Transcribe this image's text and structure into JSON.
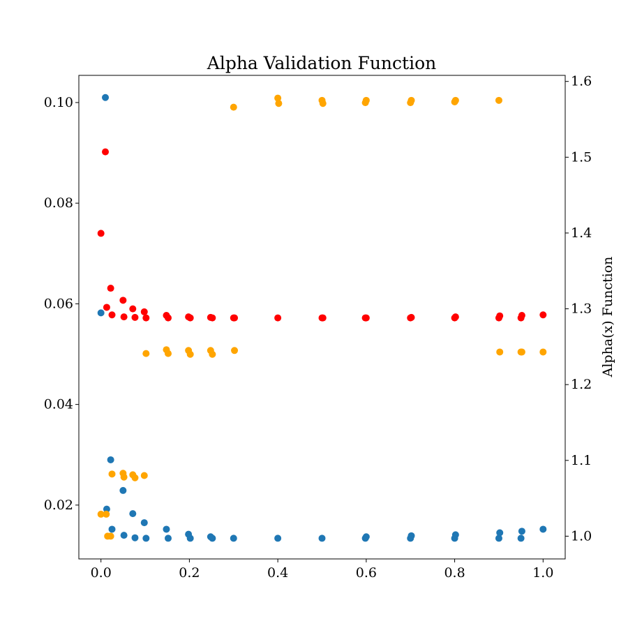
{
  "chart_data": {
    "type": "scatter",
    "title": "Alpha Validation Function",
    "xlabel": "",
    "ylabel_left": "",
    "ylabel_right": "Alpha(x) Function",
    "xlim": [
      -0.05,
      1.05
    ],
    "ylim_left": [
      0.0093,
      0.1054
    ],
    "ylim_right": [
      0.97,
      1.608
    ],
    "x_ticks": [
      0.0,
      0.2,
      0.4,
      0.6,
      0.8,
      1.0
    ],
    "x_tick_labels": [
      "0.0",
      "0.2",
      "0.4",
      "0.6",
      "0.8",
      "1.0"
    ],
    "y_left_ticks": [
      0.02,
      0.04,
      0.06,
      0.08,
      0.1
    ],
    "y_left_tick_labels": [
      "0.02",
      "0.04",
      "0.06",
      "0.08",
      "0.10"
    ],
    "y_right_ticks": [
      1.0,
      1.1,
      1.2,
      1.3,
      1.4,
      1.5,
      1.6
    ],
    "y_right_tick_labels": [
      "1.0",
      "1.1",
      "1.2",
      "1.3",
      "1.4",
      "1.5",
      "1.6"
    ],
    "grid": false,
    "series": [
      {
        "color": "#1f77b4",
        "axis": "left",
        "points": [
          [
            0.0,
            0.0582
          ],
          [
            0.01,
            0.101
          ],
          [
            0.013,
            0.0192
          ],
          [
            0.022,
            0.029
          ],
          [
            0.025,
            0.0152
          ],
          [
            0.05,
            0.0229
          ],
          [
            0.052,
            0.014
          ],
          [
            0.072,
            0.0183
          ],
          [
            0.077,
            0.0135
          ],
          [
            0.098,
            0.0165
          ],
          [
            0.102,
            0.0134
          ],
          [
            0.148,
            0.0152
          ],
          [
            0.152,
            0.0134
          ],
          [
            0.198,
            0.0142
          ],
          [
            0.202,
            0.0134
          ],
          [
            0.248,
            0.0137
          ],
          [
            0.252,
            0.0134
          ],
          [
            0.3,
            0.0134
          ],
          [
            0.4,
            0.0134
          ],
          [
            0.5,
            0.0134
          ],
          [
            0.598,
            0.0134
          ],
          [
            0.6,
            0.0137
          ],
          [
            0.7,
            0.0134
          ],
          [
            0.702,
            0.0139
          ],
          [
            0.8,
            0.0134
          ],
          [
            0.802,
            0.0141
          ],
          [
            0.9,
            0.0134
          ],
          [
            0.902,
            0.0145
          ],
          [
            0.95,
            0.0134
          ],
          [
            0.952,
            0.0148
          ],
          [
            1.0,
            0.0152
          ]
        ]
      },
      {
        "color": "#ff0000",
        "axis": "left",
        "points": [
          [
            0.0,
            0.074
          ],
          [
            0.01,
            0.0902
          ],
          [
            0.013,
            0.0593
          ],
          [
            0.022,
            0.0631
          ],
          [
            0.025,
            0.0578
          ],
          [
            0.05,
            0.0607
          ],
          [
            0.052,
            0.0574
          ],
          [
            0.072,
            0.059
          ],
          [
            0.077,
            0.0573
          ],
          [
            0.098,
            0.0584
          ],
          [
            0.102,
            0.0572
          ],
          [
            0.148,
            0.0577
          ],
          [
            0.152,
            0.0572
          ],
          [
            0.198,
            0.0574
          ],
          [
            0.202,
            0.0572
          ],
          [
            0.248,
            0.0573
          ],
          [
            0.252,
            0.0572
          ],
          [
            0.3,
            0.0572
          ],
          [
            0.302,
            0.0572
          ],
          [
            0.4,
            0.0572
          ],
          [
            0.5,
            0.0572
          ],
          [
            0.502,
            0.0572
          ],
          [
            0.598,
            0.0572
          ],
          [
            0.6,
            0.0572
          ],
          [
            0.7,
            0.0572
          ],
          [
            0.702,
            0.0573
          ],
          [
            0.8,
            0.0572
          ],
          [
            0.802,
            0.0574
          ],
          [
            0.9,
            0.0572
          ],
          [
            0.902,
            0.0576
          ],
          [
            0.95,
            0.0572
          ],
          [
            0.952,
            0.0577
          ],
          [
            1.0,
            0.0578
          ]
        ]
      },
      {
        "color": "#ffa500",
        "axis": "right",
        "points": [
          [
            0.0,
            1.029
          ],
          [
            0.012,
            1.029
          ],
          [
            0.015,
            1.0
          ],
          [
            0.022,
            1.0
          ],
          [
            0.025,
            1.082
          ],
          [
            0.05,
            1.083
          ],
          [
            0.052,
            1.078
          ],
          [
            0.072,
            1.081
          ],
          [
            0.077,
            1.077
          ],
          [
            0.098,
            1.08
          ],
          [
            0.102,
            1.241
          ],
          [
            0.148,
            1.246
          ],
          [
            0.152,
            1.241
          ],
          [
            0.198,
            1.245
          ],
          [
            0.202,
            1.24
          ],
          [
            0.248,
            1.245
          ],
          [
            0.252,
            1.24
          ],
          [
            0.3,
            1.566
          ],
          [
            0.302,
            1.245
          ],
          [
            0.4,
            1.578
          ],
          [
            0.402,
            1.571
          ],
          [
            0.5,
            1.575
          ],
          [
            0.502,
            1.571
          ],
          [
            0.598,
            1.572
          ],
          [
            0.6,
            1.575
          ],
          [
            0.7,
            1.572
          ],
          [
            0.702,
            1.575
          ],
          [
            0.8,
            1.573
          ],
          [
            0.802,
            1.575
          ],
          [
            0.9,
            1.575
          ],
          [
            0.902,
            1.243
          ],
          [
            0.95,
            1.243
          ],
          [
            0.952,
            1.243
          ],
          [
            1.0,
            1.243
          ]
        ]
      }
    ]
  }
}
